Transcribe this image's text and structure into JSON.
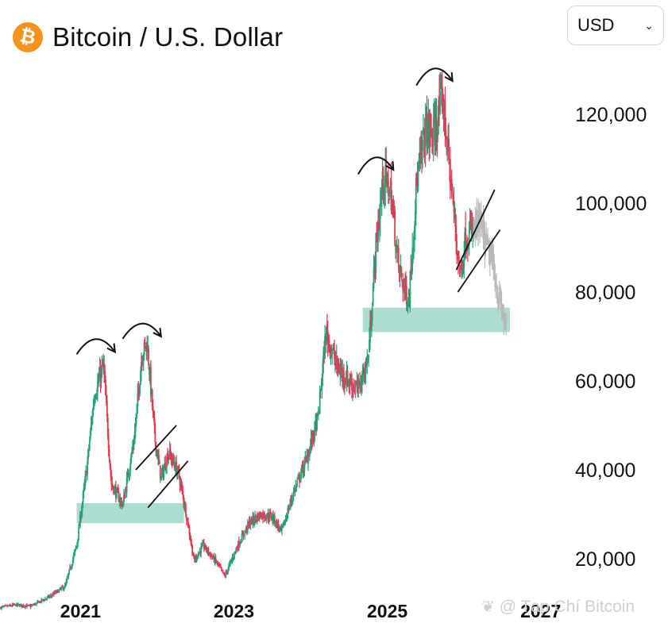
{
  "header": {
    "title": "Bitcoin / U.S. Dollar",
    "logo_icon": "bitcoin-icon",
    "logo_glyph": "₿",
    "brand_color": "#f7931a"
  },
  "currency_select": {
    "value": "USD",
    "chevron": "⌄"
  },
  "watermark": {
    "text": "@ Tạp Chí Bitcoin",
    "icon": "butterfly-icon"
  },
  "chart_data": {
    "type": "candlestick",
    "title": "Bitcoin / U.S. Dollar",
    "ylim": [
      10000,
      135000
    ],
    "xlim": [
      2019.95,
      2027.2
    ],
    "y_ticks": [
      20000,
      40000,
      60000,
      80000,
      100000,
      120000
    ],
    "y_tick_labels": [
      "20,000",
      "40,000",
      "60,000",
      "80,000",
      "100,000",
      "120,000"
    ],
    "x_ticks": [
      2021,
      2023,
      2025,
      2027
    ],
    "x_tick_labels": [
      "2021",
      "2023",
      "2025",
      "2027"
    ],
    "grid": false,
    "colors": {
      "up": "#26a17b",
      "down": "#e2384d",
      "projection": "#b9b9b9",
      "support_zone": "#8fd3c1"
    },
    "price_path": [
      [
        2019.95,
        9000
      ],
      [
        2020.15,
        9600
      ],
      [
        2020.35,
        9300
      ],
      [
        2020.6,
        11500
      ],
      [
        2020.8,
        13800
      ],
      [
        2020.95,
        23000
      ],
      [
        2021.08,
        40000
      ],
      [
        2021.18,
        57000
      ],
      [
        2021.3,
        63500
      ],
      [
        2021.4,
        37000
      ],
      [
        2021.55,
        32000
      ],
      [
        2021.7,
        47000
      ],
      [
        2021.8,
        66000
      ],
      [
        2021.87,
        68500
      ],
      [
        2021.97,
        47000
      ],
      [
        2022.05,
        38000
      ],
      [
        2022.15,
        44000
      ],
      [
        2022.28,
        39000
      ],
      [
        2022.38,
        30000
      ],
      [
        2022.48,
        19500
      ],
      [
        2022.6,
        23000
      ],
      [
        2022.78,
        19000
      ],
      [
        2022.88,
        16000
      ],
      [
        2023.05,
        23000
      ],
      [
        2023.2,
        28000
      ],
      [
        2023.35,
        30000
      ],
      [
        2023.5,
        29500
      ],
      [
        2023.62,
        26000
      ],
      [
        2023.78,
        35000
      ],
      [
        2023.95,
        42500
      ],
      [
        2024.1,
        52000
      ],
      [
        2024.2,
        71000
      ],
      [
        2024.35,
        63000
      ],
      [
        2024.5,
        60000
      ],
      [
        2024.62,
        58000
      ],
      [
        2024.75,
        65000
      ],
      [
        2024.85,
        90000
      ],
      [
        2024.95,
        106000
      ],
      [
        2025.05,
        102000
      ],
      [
        2025.15,
        85000
      ],
      [
        2025.28,
        78000
      ],
      [
        2025.38,
        104000
      ],
      [
        2025.5,
        117000
      ],
      [
        2025.6,
        115000
      ],
      [
        2025.72,
        124000
      ],
      [
        2025.8,
        110000
      ],
      [
        2025.9,
        92000
      ],
      [
        2025.95,
        84000
      ],
      [
        2026.02,
        92000
      ],
      [
        2026.12,
        94000
      ]
    ],
    "projection_path": [
      [
        2026.12,
        94000
      ],
      [
        2026.2,
        95500
      ],
      [
        2026.3,
        90000
      ],
      [
        2026.38,
        86000
      ],
      [
        2026.45,
        79000
      ],
      [
        2026.52,
        74000
      ],
      [
        2026.55,
        72500
      ]
    ],
    "support_zones": [
      {
        "x": [
          2020.95,
          2022.35
        ],
        "y": [
          28000,
          32500
        ]
      },
      {
        "x": [
          2024.68,
          2026.6
        ],
        "y": [
          71000,
          76500
        ]
      }
    ],
    "channels": [
      {
        "upper": [
          [
            2021.72,
            40000
          ],
          [
            2022.25,
            50000
          ]
        ],
        "lower": [
          [
            2021.88,
            31500
          ],
          [
            2022.4,
            42000
          ]
        ]
      },
      {
        "upper": [
          [
            2025.9,
            85000
          ],
          [
            2026.4,
            103000
          ]
        ],
        "lower": [
          [
            2025.92,
            80000
          ],
          [
            2026.47,
            94000
          ]
        ]
      }
    ],
    "arrows": [
      {
        "from": [
          2020.95,
          66000
        ],
        "to": [
          2021.45,
          66500
        ]
      },
      {
        "from": [
          2021.55,
          69500
        ],
        "to": [
          2022.05,
          70000
        ]
      },
      {
        "from": [
          2024.62,
          106500
        ],
        "to": [
          2025.08,
          107500
        ]
      },
      {
        "from": [
          2025.38,
          126500
        ],
        "to": [
          2025.85,
          127500
        ]
      }
    ]
  }
}
